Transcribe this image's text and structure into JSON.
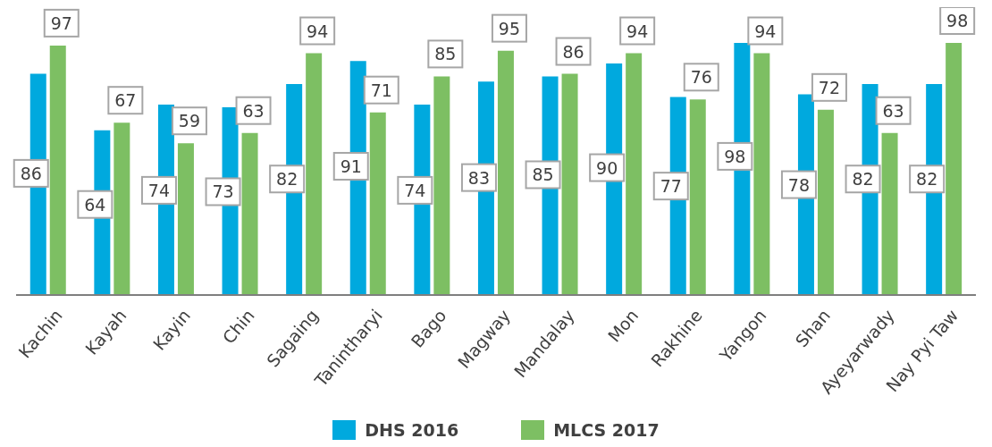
{
  "chart_data": {
    "type": "bar",
    "categories": [
      "Kachin",
      "Kayah",
      "Kayin",
      "Chin",
      "Sagaing",
      "Tanintharyi",
      "Bago",
      "Magway",
      "Mandalay",
      "Mon",
      "Rakhine",
      "Yangon",
      "Shan",
      "Ayeyarwady",
      "Nay Pyi Taw"
    ],
    "series": [
      {
        "name": "DHS 2016",
        "color": "#00a9de",
        "values": [
          86,
          64,
          74,
          73,
          82,
          91,
          74,
          83,
          85,
          90,
          77,
          98,
          78,
          82,
          82
        ]
      },
      {
        "name": "MLCS 2017",
        "color": "#7dbf63",
        "values": [
          97,
          67,
          59,
          63,
          94,
          71,
          85,
          95,
          86,
          94,
          76,
          94,
          72,
          63,
          98
        ]
      }
    ],
    "data_labels": true,
    "legend": "bottom"
  }
}
